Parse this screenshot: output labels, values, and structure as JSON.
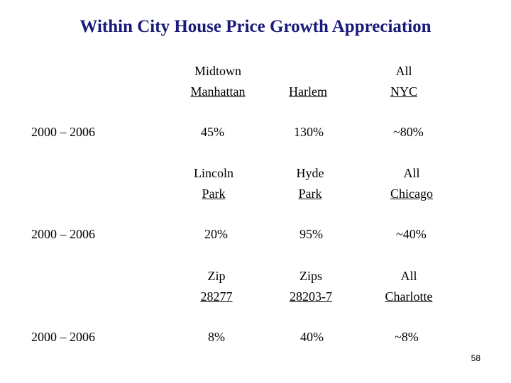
{
  "title": "Within City House Price Growth Appreciation",
  "page_number": "58",
  "sections": [
    {
      "headers": [
        {
          "line1": "Midtown",
          "line2": "Manhattan"
        },
        {
          "line1": "",
          "line2": "Harlem"
        },
        {
          "line1": "All",
          "line2": "NYC"
        }
      ],
      "period": "2000 – 2006",
      "values": [
        "45%",
        "130%",
        "~80%"
      ]
    },
    {
      "headers": [
        {
          "line1": "Lincoln",
          "line2": "Park"
        },
        {
          "line1": "Hyde",
          "line2": "Park"
        },
        {
          "line1": "All",
          "line2": "Chicago"
        }
      ],
      "period": "2000 – 2006",
      "values": [
        "20%",
        "95%",
        "~40%"
      ]
    },
    {
      "headers": [
        {
          "line1": "Zip",
          "line2": "28277"
        },
        {
          "line1": "Zips",
          "line2": "28203-7"
        },
        {
          "line1": "All",
          "line2": "Charlotte"
        }
      ],
      "period": "2000 – 2006",
      "values": [
        "8%",
        "40%",
        "~8%"
      ]
    }
  ]
}
